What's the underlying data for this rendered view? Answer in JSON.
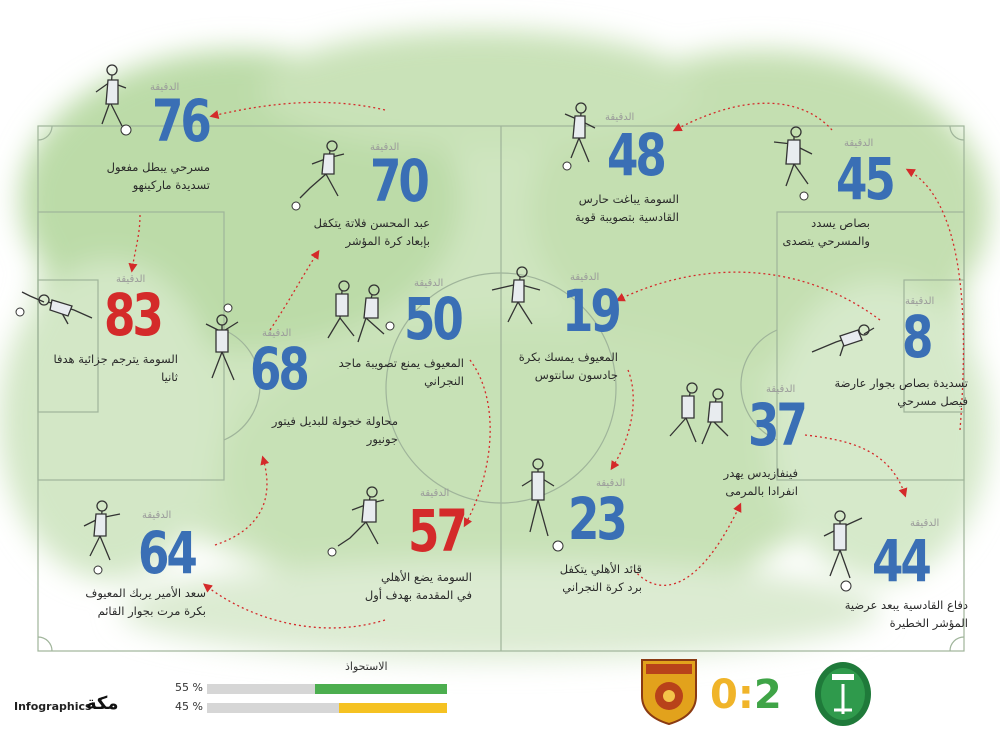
{
  "events": [
    {
      "minute": "76",
      "color": "blue",
      "label": "الدقيقة",
      "lines": [
        "مسرحي يبطل مفعول",
        "تسديدة ماركينهو"
      ]
    },
    {
      "minute": "70",
      "color": "blue",
      "label": "الدقيقة",
      "lines": [
        "عبد المحسن فلاتة يتكفل",
        "بإبعاد كرة المؤشر"
      ]
    },
    {
      "minute": "48",
      "color": "blue",
      "label": "الدقيقة",
      "lines": [
        "السومة يباغت حارس",
        "القادسية بتصويبة قوية"
      ]
    },
    {
      "minute": "45",
      "color": "blue",
      "label": "الدقيقة",
      "lines": [
        "بصاص يسدد",
        "والمسرحي يتصدى"
      ]
    },
    {
      "minute": "83",
      "color": "red",
      "label": "الدقيقة",
      "lines": [
        "السومة يترجم جزائية هدفا",
        "ثانيا"
      ]
    },
    {
      "minute": "50",
      "color": "blue",
      "label": "الدقيقة",
      "lines": [
        "المعيوف يمنع تصويبة ماجد",
        "النجراني"
      ]
    },
    {
      "minute": "19",
      "color": "blue",
      "label": "الدقيقة",
      "lines": [
        "المعيوف يمسك بكرة",
        "جادسون سانتوس"
      ]
    },
    {
      "minute": "8",
      "color": "blue",
      "label": "الدقيقة",
      "lines": [
        "تسديدة بصاص بجوار عارضة",
        "فيصل مسرحي"
      ]
    },
    {
      "minute": "68",
      "color": "blue",
      "label": "الدقيقة",
      "lines": [
        "محاولة خجولة للبديل فيتور",
        "جونيور"
      ]
    },
    {
      "minute": "37",
      "color": "blue",
      "label": "الدقيقة",
      "lines": [
        "فينفازيدس يهدر",
        "انفرادا بالمرمى"
      ]
    },
    {
      "minute": "64",
      "color": "blue",
      "label": "الدقيقة",
      "lines": [
        "سعد الأمير يربك المعيوف",
        "بكرة مرت بجوار القائم"
      ]
    },
    {
      "minute": "57",
      "color": "red",
      "label": "الدقيقة",
      "lines": [
        "السومة يضع الأهلي",
        "في المقدمة بهدف أول"
      ]
    },
    {
      "minute": "23",
      "color": "blue",
      "label": "الدقيقة",
      "lines": [
        "قائد الأهلي يتكفل",
        "برد كرة النجراني"
      ]
    },
    {
      "minute": "44",
      "color": "blue",
      "label": "الدقيقة",
      "lines": [
        "دفاع القادسية يبعد عرضية",
        "المؤشر الخطيرة"
      ]
    }
  ],
  "possession": {
    "title": "الاستحواذ",
    "rows": [
      {
        "pct": "55 %",
        "value": 55,
        "color": "#4cae4f"
      },
      {
        "pct": "45 %",
        "value": 45,
        "color": "#f5c222"
      }
    ]
  },
  "score": {
    "left": "0",
    "sep": ":",
    "right": "2",
    "left_color": "#f0b429",
    "right_color": "#3fa447"
  },
  "teams": {
    "left_crest": "qadsiah-crest",
    "right_crest": "al-ahli-crest"
  },
  "footer": {
    "brand": "Infographics",
    "logo": "مكة"
  },
  "colors": {
    "blue": "#3a6fb5",
    "red": "#d42a2a",
    "pitch_green": "#b9d9a6",
    "arrow_red": "#d42a2a"
  }
}
